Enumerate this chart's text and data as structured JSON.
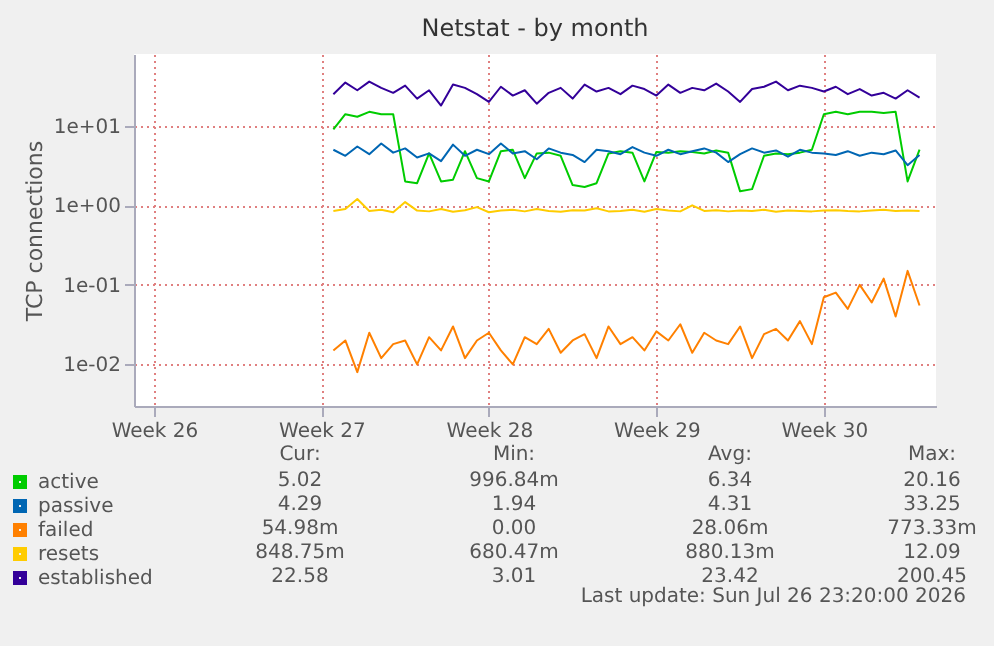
{
  "chart_data": {
    "type": "line",
    "title": "Netstat - by month",
    "ylabel": "TCP connections",
    "log": "y",
    "grid": true,
    "legend": "bottom left",
    "xlim": [
      "2026-06-24T16:00",
      "2026-07-28T04:30"
    ],
    "xticks": [
      {
        "value": "2026-06-25T12:00",
        "label": "Week 26"
      },
      {
        "value": "2026-07-02T12:00",
        "label": "Week 27"
      },
      {
        "value": "2026-07-09T12:00",
        "label": "Week 28"
      },
      {
        "value": "2026-07-16T12:00",
        "label": "Week 29"
      },
      {
        "value": "2026-07-23T12:00",
        "label": "Week 30"
      }
    ],
    "ylim": [
      0.003,
      80
    ],
    "yticks": [
      {
        "value": 0.01,
        "label": "1e-02"
      },
      {
        "value": 0.1,
        "label": "1e-01"
      },
      {
        "value": 1,
        "label": "1e+00"
      },
      {
        "value": 10,
        "label": "1e+01"
      }
    ],
    "x": [
      "2026-07-03T00:00",
      "2026-07-03T12:00",
      "2026-07-04T00:00",
      "2026-07-04T12:00",
      "2026-07-05T00:00",
      "2026-07-05T12:00",
      "2026-07-06T00:00",
      "2026-07-06T12:00",
      "2026-07-07T00:00",
      "2026-07-07T12:00",
      "2026-07-08T00:00",
      "2026-07-08T12:00",
      "2026-07-09T00:00",
      "2026-07-09T12:00",
      "2026-07-10T00:00",
      "2026-07-10T12:00",
      "2026-07-11T00:00",
      "2026-07-11T12:00",
      "2026-07-12T00:00",
      "2026-07-12T12:00",
      "2026-07-13T00:00",
      "2026-07-13T12:00",
      "2026-07-14T00:00",
      "2026-07-14T12:00",
      "2026-07-15T00:00",
      "2026-07-15T12:00",
      "2026-07-16T00:00",
      "2026-07-16T12:00",
      "2026-07-17T00:00",
      "2026-07-17T12:00",
      "2026-07-18T00:00",
      "2026-07-18T12:00",
      "2026-07-19T00:00",
      "2026-07-19T12:00",
      "2026-07-20T00:00",
      "2026-07-20T12:00",
      "2026-07-21T00:00",
      "2026-07-21T12:00",
      "2026-07-22T00:00",
      "2026-07-22T12:00",
      "2026-07-23T00:00",
      "2026-07-23T12:00",
      "2026-07-24T00:00",
      "2026-07-24T12:00",
      "2026-07-25T00:00",
      "2026-07-25T12:00",
      "2026-07-26T00:00",
      "2026-07-26T12:00",
      "2026-07-27T00:00",
      "2026-07-27T12:00"
    ],
    "series": [
      {
        "name": "active",
        "color": "#00cc00",
        "values": [
          9,
          14,
          13,
          15,
          14,
          14,
          2.0,
          1.9,
          4.5,
          2.0,
          2.1,
          4.8,
          2.2,
          2.0,
          4.8,
          5.0,
          2.2,
          4.5,
          4.6,
          4.2,
          1.8,
          1.7,
          1.9,
          4.5,
          4.8,
          4.6,
          2.0,
          4.7,
          4.6,
          4.8,
          4.7,
          4.5,
          4.9,
          4.6,
          1.5,
          1.6,
          4.2,
          4.5,
          4.4,
          4.6,
          5.0,
          14,
          15,
          14,
          15,
          15,
          14.5,
          15,
          2.0,
          5.02
        ]
      },
      {
        "name": "passive",
        "color": "#0066b3",
        "values": [
          5,
          4.2,
          5.5,
          4.4,
          6,
          4.6,
          5.2,
          4.0,
          4.5,
          3.6,
          5.8,
          4.2,
          5,
          4.4,
          6,
          4.5,
          4.8,
          3.8,
          5.2,
          4.6,
          4.3,
          3.5,
          5,
          4.8,
          4.4,
          5.4,
          4.6,
          4.2,
          5,
          4.4,
          4.8,
          5.2,
          4.6,
          3.5,
          4.4,
          5.2,
          4.6,
          4.9,
          4.1,
          5,
          4.6,
          4.5,
          4.3,
          4.8,
          4.2,
          4.6,
          4.4,
          4.9,
          3.2,
          4.29
        ]
      },
      {
        "name": "failed",
        "color": "#ff8000",
        "values": [
          0.015,
          0.02,
          0.008,
          0.025,
          0.012,
          0.018,
          0.02,
          0.01,
          0.022,
          0.015,
          0.03,
          0.012,
          0.02,
          0.025,
          0.015,
          0.01,
          0.022,
          0.018,
          0.028,
          0.014,
          0.02,
          0.024,
          0.012,
          0.03,
          0.018,
          0.022,
          0.015,
          0.026,
          0.02,
          0.032,
          0.014,
          0.025,
          0.02,
          0.018,
          0.03,
          0.012,
          0.024,
          0.028,
          0.02,
          0.035,
          0.018,
          0.07,
          0.08,
          0.05,
          0.1,
          0.06,
          0.12,
          0.04,
          0.15,
          0.055
        ]
      },
      {
        "name": "resets",
        "color": "#ffcc00",
        "values": [
          0.85,
          0.9,
          1.2,
          0.85,
          0.88,
          0.82,
          1.1,
          0.86,
          0.84,
          0.9,
          0.83,
          0.87,
          0.95,
          0.82,
          0.86,
          0.88,
          0.84,
          0.9,
          0.85,
          0.83,
          0.87,
          0.86,
          0.92,
          0.84,
          0.85,
          0.88,
          0.83,
          0.9,
          0.86,
          0.84,
          1.0,
          0.85,
          0.87,
          0.84,
          0.86,
          0.85,
          0.88,
          0.83,
          0.86,
          0.85,
          0.84,
          0.86,
          0.87,
          0.85,
          0.84,
          0.86,
          0.88,
          0.85,
          0.86,
          0.849
        ]
      },
      {
        "name": "established",
        "color": "#330099",
        "values": [
          25,
          35,
          28,
          36,
          30,
          26,
          32,
          22,
          28,
          18,
          33,
          30,
          25,
          20,
          31,
          24,
          28,
          19,
          26,
          30,
          22,
          33,
          27,
          30,
          25,
          32,
          29,
          24,
          33,
          26,
          30,
          28,
          34,
          27,
          20,
          29,
          31,
          36,
          28,
          32,
          30,
          27,
          31,
          25,
          29,
          24,
          26,
          22,
          28,
          22.58
        ]
      }
    ],
    "annotations": [
      "Cur:",
      "Min:",
      "Avg:",
      "Max:",
      "5.02",
      "996.84m",
      "6.34",
      "20.16",
      "4.29",
      "1.94",
      "4.31",
      "33.25",
      "54.98m",
      "0.00",
      "28.06m",
      "773.33m",
      "848.75m",
      "680.47m",
      "880.13m",
      "12.09",
      "22.58",
      "3.01",
      "23.42",
      "200.45",
      "Last update: Sun Jul 26 23:20:00 2026"
    ]
  }
}
